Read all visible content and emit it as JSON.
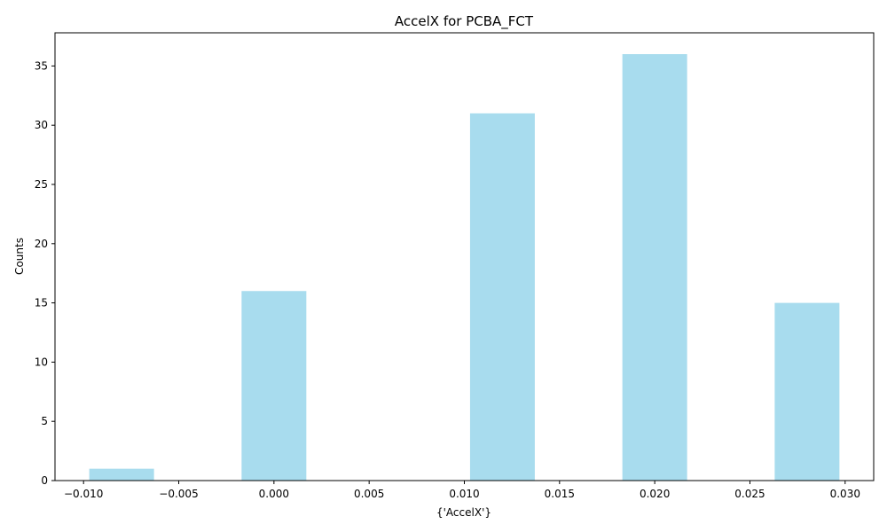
{
  "chart_data": {
    "type": "bar",
    "title": "AccelX for PCBA_FCT",
    "xlabel": "{'AccelX'}",
    "ylabel": "Counts",
    "xlim": [
      -0.0115,
      0.0315
    ],
    "ylim": [
      0,
      37.8
    ],
    "x_ticks": [
      -0.01,
      -0.005,
      0.0,
      0.005,
      0.01,
      0.015,
      0.02,
      0.025,
      0.03
    ],
    "x_tick_labels": [
      "−0.010",
      "−0.005",
      "0.000",
      "0.005",
      "0.010",
      "0.015",
      "0.020",
      "0.025",
      "0.030"
    ],
    "y_ticks": [
      0,
      5,
      10,
      15,
      20,
      25,
      30,
      35
    ],
    "y_tick_labels": [
      "0",
      "5",
      "10",
      "15",
      "20",
      "25",
      "30",
      "35"
    ],
    "bar_color": "#a8dcee",
    "bins": [
      {
        "x0": -0.0097,
        "x1": -0.0063,
        "count": 1
      },
      {
        "x0": -0.0017,
        "x1": 0.0017,
        "count": 16
      },
      {
        "x0": 0.0103,
        "x1": 0.0137,
        "count": 31
      },
      {
        "x0": 0.0183,
        "x1": 0.0217,
        "count": 36
      },
      {
        "x0": 0.0263,
        "x1": 0.0297,
        "count": 15
      }
    ],
    "grid": false,
    "legend": "none"
  }
}
